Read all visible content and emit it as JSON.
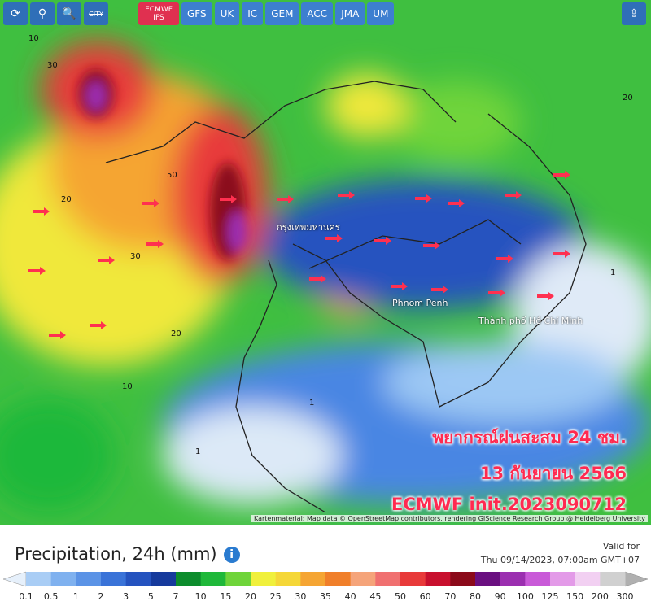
{
  "toolbar": {
    "city": "CITY",
    "models": [
      "ECMWF IFS",
      "GFS",
      "UK",
      "IC",
      "GEM",
      "ACC",
      "JMA",
      "UM"
    ],
    "active_model": 0
  },
  "map_labels": [
    "Phnom Penh",
    "Thành phố Hồ Chí Minh",
    "กรุงเทพมหานคร",
    "30",
    "20",
    "10",
    "50",
    "30",
    "20",
    "10",
    "1",
    "1",
    "20",
    "1"
  ],
  "overlay": [
    "พยากรณ์ฝนสะสม 24 ชม.",
    "13 กันยายน 2566",
    "ECMWF init.2023090712"
  ],
  "attribution": "Kartenmaterial: Map data © OpenStreetMap contributors, rendering GIScience Research Group @ Heidelberg University",
  "legend": {
    "title": "Precipitation, 24h (mm)",
    "valid_label": "Valid for",
    "valid_time": "Thu 09/14/2023, 07:00am GMT+07",
    "labels": [
      "0.1",
      "0.5",
      "1",
      "2",
      "3",
      "5",
      "7",
      "10",
      "15",
      "20",
      "25",
      "30",
      "35",
      "40",
      "45",
      "50",
      "60",
      "70",
      "80",
      "90",
      "100",
      "125",
      "150",
      "200",
      "300"
    ],
    "colors": [
      "#a9cdf5",
      "#7fb1ef",
      "#5b93e6",
      "#3a73d8",
      "#2553bf",
      "#163a9c",
      "#0c8c2c",
      "#1fb83a",
      "#6fd43a",
      "#f0f03c",
      "#f5d738",
      "#f5a533",
      "#f07f2a",
      "#f5a47a",
      "#f07070",
      "#e83a3a",
      "#c8102e",
      "#8b0a1a",
      "#6a0f80",
      "#9b2fb0",
      "#c95ad8",
      "#e39ae8",
      "#f2d0f2",
      "#d0d0d0"
    ],
    "under_color": "#e6f0fb",
    "over_color": "#b0b0b0"
  }
}
